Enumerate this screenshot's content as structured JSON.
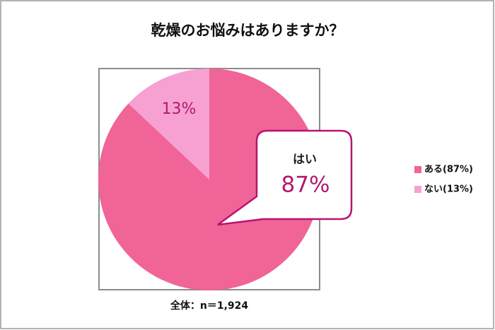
{
  "chart_data": {
    "type": "pie",
    "title": "乾燥のお悩みはありますか？",
    "categories": [
      "ある(87%)",
      "ない(13%)"
    ],
    "values": [
      87,
      13
    ],
    "value_labels": [
      "87%",
      "13%"
    ],
    "colors": [
      "#f06497",
      "#f7a1d2"
    ],
    "annotation": "はい",
    "note": "全体：n＝1,924",
    "legend": "right"
  }
}
